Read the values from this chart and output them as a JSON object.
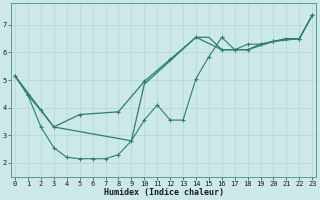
{
  "xlabel": "Humidex (Indice chaleur)",
  "background_color": "#cce8e8",
  "grid_color": "#b8d8d8",
  "line_color": "#2e7d72",
  "line1_x": [
    0,
    1,
    2,
    3,
    4,
    5,
    6,
    7,
    8,
    9,
    10,
    11,
    12,
    13,
    14,
    15,
    16,
    17,
    18,
    19,
    20,
    21,
    22,
    23
  ],
  "line1_y": [
    5.15,
    4.45,
    3.3,
    2.55,
    2.2,
    2.15,
    2.15,
    2.15,
    2.3,
    2.8,
    3.55,
    4.1,
    3.55,
    3.55,
    5.05,
    5.85,
    6.55,
    6.1,
    6.3,
    6.3,
    6.4,
    6.5,
    6.5,
    7.35
  ],
  "line2_x": [
    0,
    1,
    2,
    3,
    5,
    8,
    10,
    12,
    14,
    16,
    18,
    20,
    22,
    23
  ],
  "line2_y": [
    5.15,
    4.45,
    3.9,
    3.3,
    3.75,
    3.85,
    4.95,
    5.75,
    6.55,
    6.1,
    6.1,
    6.4,
    6.5,
    7.35
  ],
  "line3_x": [
    0,
    3,
    9,
    10,
    14,
    15,
    16,
    17,
    18,
    19,
    20,
    21,
    22,
    23
  ],
  "line3_y": [
    5.15,
    3.3,
    2.8,
    4.85,
    6.55,
    6.55,
    6.1,
    6.1,
    6.1,
    6.3,
    6.4,
    6.5,
    6.5,
    7.35
  ],
  "ylim": [
    1.5,
    7.8
  ],
  "xlim": [
    -0.3,
    23.3
  ],
  "yticks": [
    2,
    3,
    4,
    5,
    6,
    7
  ],
  "xticks": [
    0,
    1,
    2,
    3,
    4,
    5,
    6,
    7,
    8,
    9,
    10,
    11,
    12,
    13,
    14,
    15,
    16,
    17,
    18,
    19,
    20,
    21,
    22,
    23
  ]
}
